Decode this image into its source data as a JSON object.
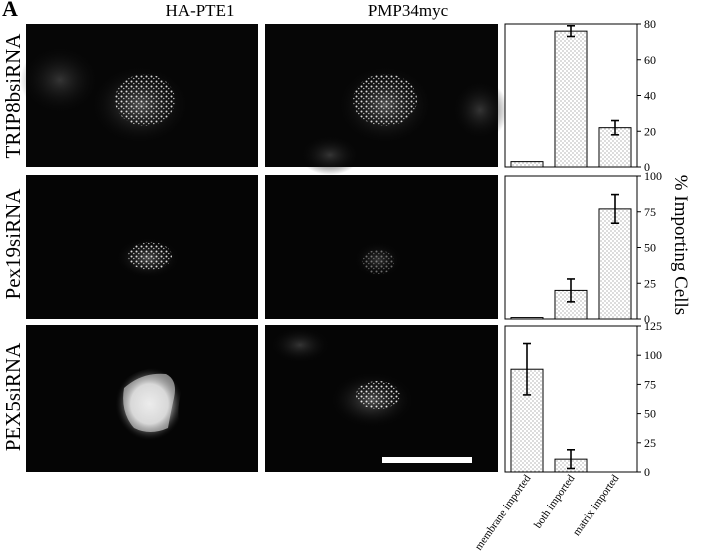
{
  "panel_letter": "A",
  "columns": [
    "HA-PTE1",
    "PMP34myc"
  ],
  "rows": [
    "TRIP8bsiRNA",
    "Pex19siRNA",
    "PEX5siRNA"
  ],
  "y_axis_title": "% Importing Cells",
  "chart_data": [
    {
      "type": "bar",
      "row": "TRIP8bsiRNA",
      "categories": [
        "membrane imported",
        "both imported",
        "matrix imported"
      ],
      "values": [
        3,
        76,
        22
      ],
      "errors": [
        0,
        3,
        4
      ],
      "ylim": [
        0,
        80
      ],
      "yticks": [
        0,
        20,
        40,
        60,
        80
      ],
      "pattern": "stippled"
    },
    {
      "type": "bar",
      "row": "Pex19siRNA",
      "categories": [
        "membrane imported",
        "both imported",
        "matrix imported"
      ],
      "values": [
        1,
        20,
        77
      ],
      "errors": [
        0,
        8,
        10
      ],
      "ylim": [
        0,
        100
      ],
      "yticks": [
        0,
        25,
        50,
        75,
        100
      ],
      "pattern": "stippled"
    },
    {
      "type": "bar",
      "row": "PEX5siRNA",
      "categories": [
        "membrane imported",
        "both imported",
        "matrix imported"
      ],
      "values": [
        88,
        11,
        0
      ],
      "errors": [
        22,
        8,
        0
      ],
      "ylim": [
        0,
        125
      ],
      "yticks": [
        0,
        25,
        50,
        75,
        100,
        125
      ],
      "pattern": "stippled"
    }
  ],
  "x_tick_labels": [
    "membrane imported",
    "both imported",
    "matrix imported"
  ]
}
